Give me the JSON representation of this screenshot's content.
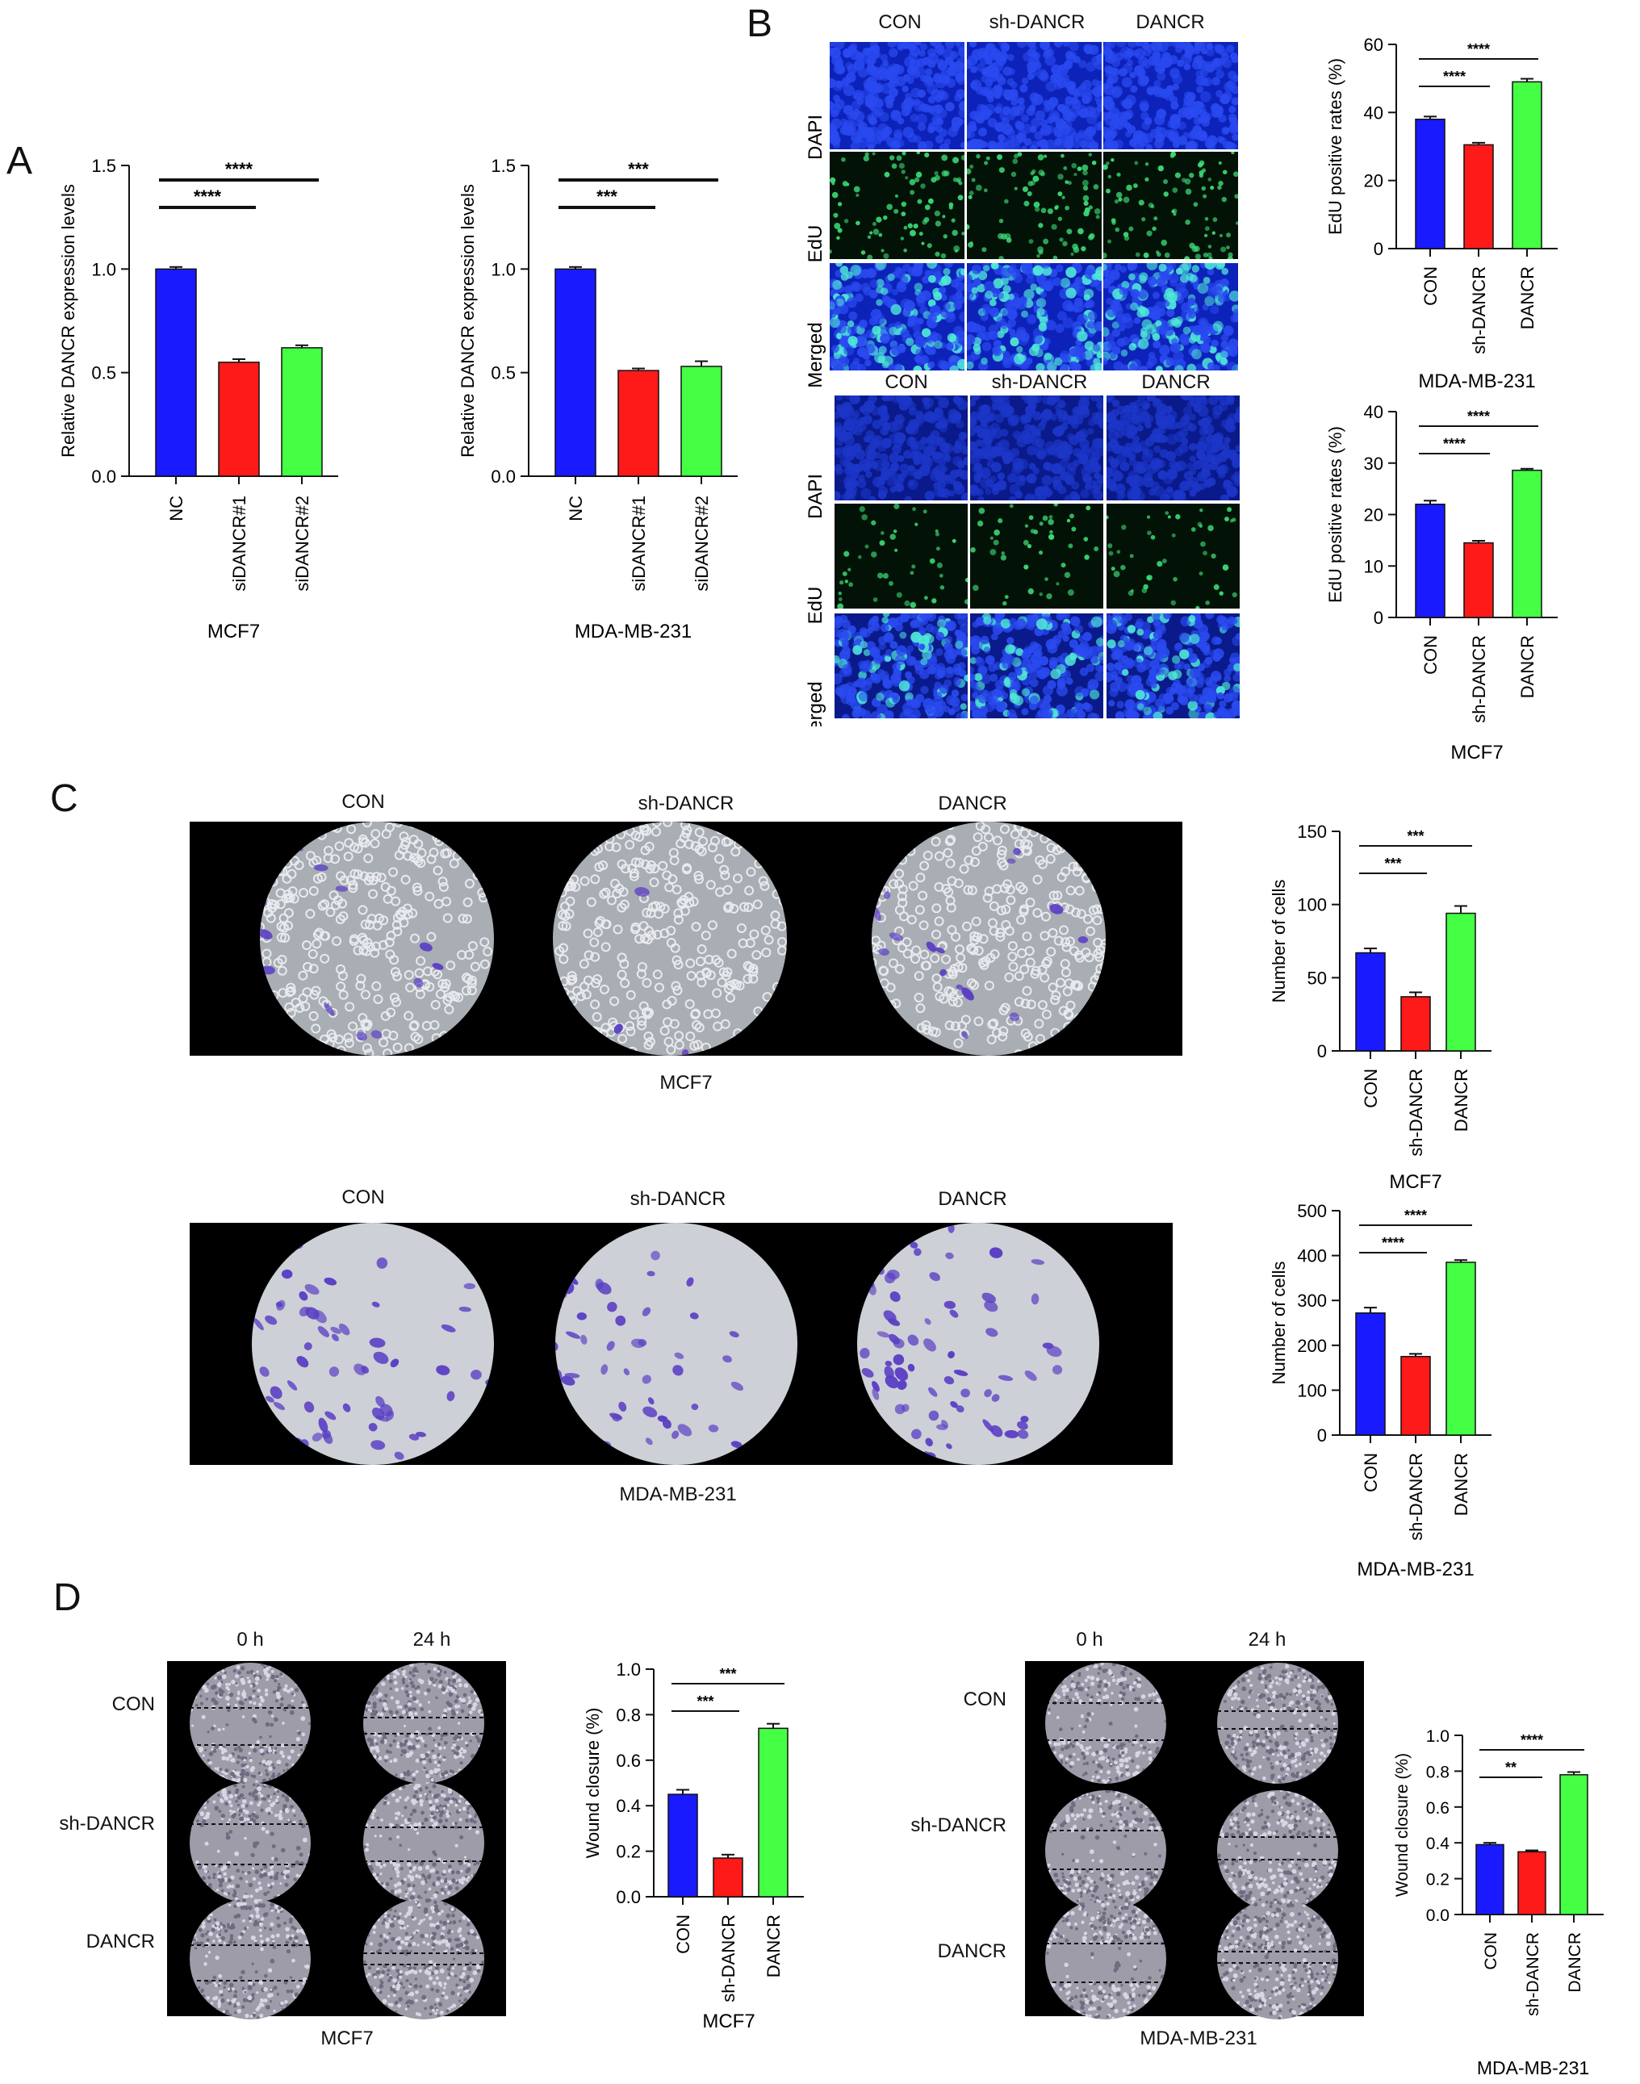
{
  "panels": {
    "a": "A",
    "b": "B",
    "c": "C",
    "d": "D"
  },
  "panel_b": {
    "columns": [
      "CON",
      "sh-DANCR",
      "DANCR"
    ],
    "rows": [
      "DAPI",
      "EdU",
      "Merged"
    ]
  },
  "panel_c": {
    "columns": [
      "CON",
      "sh-DANCR",
      "DANCR"
    ],
    "top_caption": "MCF7",
    "bottom_caption": "MDA-MB-231"
  },
  "panel_d": {
    "times": [
      "0 h",
      "24 h"
    ],
    "rows": [
      "CON",
      "sh-DANCR",
      "DANCR"
    ],
    "left_caption": "MCF7",
    "right_caption": "MDA-MB-231"
  },
  "colors": {
    "blue": "#1a1aff",
    "red": "#ff1a1a",
    "green": "#44ff44",
    "dapi": "#1d2fd6",
    "edu": "#3ee07a",
    "crystal": "#5b3fc4"
  },
  "chart_data": [
    {
      "id": "a1",
      "type": "bar",
      "categories": [
        "NC",
        "siDANCR#1",
        "siDANCR#2"
      ],
      "values": [
        1.0,
        0.55,
        0.62
      ],
      "errors": [
        0.01,
        0.015,
        0.012
      ],
      "ylabel": "Relative DANCR expression levels",
      "ylim": [
        0,
        1.5
      ],
      "yticks": [
        "0.0",
        "0.5",
        "1.0",
        "1.5"
      ],
      "caption": "MCF7",
      "sig": [
        {
          "from": 0,
          "to": 1,
          "label": "****"
        },
        {
          "from": 0,
          "to": 2,
          "label": "****"
        }
      ]
    },
    {
      "id": "a2",
      "type": "bar",
      "categories": [
        "NC",
        "siDANCR#1",
        "siDANCR#2"
      ],
      "values": [
        1.0,
        0.51,
        0.53
      ],
      "errors": [
        0.01,
        0.01,
        0.025
      ],
      "ylabel": "Relative DANCR expression levels",
      "ylim": [
        0,
        1.5
      ],
      "yticks": [
        "0.0",
        "0.5",
        "1.0",
        "1.5"
      ],
      "caption": "MDA-MB-231",
      "sig": [
        {
          "from": 0,
          "to": 1,
          "label": "***"
        },
        {
          "from": 0,
          "to": 2,
          "label": "***"
        }
      ]
    },
    {
      "id": "b1",
      "type": "bar",
      "categories": [
        "CON",
        "sh-DANCR",
        "DANCR"
      ],
      "values": [
        38,
        30.5,
        49
      ],
      "errors": [
        0.8,
        0.6,
        0.9
      ],
      "ylabel": "EdU positive rates (%)",
      "ylim": [
        0,
        60
      ],
      "yticks": [
        "0",
        "20",
        "40",
        "60"
      ],
      "caption": "MDA-MB-231",
      "sig": [
        {
          "from": 0,
          "to": 1,
          "label": "****"
        },
        {
          "from": 0,
          "to": 2,
          "label": "****"
        }
      ]
    },
    {
      "id": "b2",
      "type": "bar",
      "categories": [
        "CON",
        "sh-DANCR",
        "DANCR"
      ],
      "values": [
        22,
        14.5,
        28.6
      ],
      "errors": [
        0.7,
        0.4,
        0.3
      ],
      "ylabel": "EdU positive rates (%)",
      "ylim": [
        0,
        40
      ],
      "yticks": [
        "0",
        "10",
        "20",
        "30",
        "40"
      ],
      "caption": "MCF7",
      "sig": [
        {
          "from": 0,
          "to": 1,
          "label": "****"
        },
        {
          "from": 0,
          "to": 2,
          "label": "****"
        }
      ]
    },
    {
      "id": "c1",
      "type": "bar",
      "categories": [
        "CON",
        "sh-DANCR",
        "DANCR"
      ],
      "values": [
        67,
        37,
        94
      ],
      "errors": [
        3,
        3,
        5
      ],
      "ylabel": "Number of cells",
      "ylim": [
        0,
        150
      ],
      "yticks": [
        "0",
        "50",
        "100",
        "150"
      ],
      "caption": "MCF7",
      "sig": [
        {
          "from": 0,
          "to": 1,
          "label": "***"
        },
        {
          "from": 0,
          "to": 2,
          "label": "***"
        }
      ]
    },
    {
      "id": "c2",
      "type": "bar",
      "categories": [
        "CON",
        "sh-DANCR",
        "DANCR"
      ],
      "values": [
        272,
        175,
        385
      ],
      "errors": [
        12,
        6,
        5
      ],
      "ylabel": "Number of cells",
      "ylim": [
        0,
        500
      ],
      "yticks": [
        "0",
        "100",
        "200",
        "300",
        "400",
        "500"
      ],
      "caption": "MDA-MB-231",
      "sig": [
        {
          "from": 0,
          "to": 1,
          "label": "****"
        },
        {
          "from": 0,
          "to": 2,
          "label": "****"
        }
      ]
    },
    {
      "id": "d1",
      "type": "bar",
      "categories": [
        "CON",
        "sh-DANCR",
        "DANCR"
      ],
      "values": [
        0.45,
        0.17,
        0.74
      ],
      "errors": [
        0.02,
        0.015,
        0.02
      ],
      "ylabel": "Wound closure (%)",
      "ylim": [
        0,
        1.0
      ],
      "yticks": [
        "0.0",
        "0.2",
        "0.4",
        "0.6",
        "0.8",
        "1.0"
      ],
      "caption": "MCF7",
      "sig": [
        {
          "from": 0,
          "to": 1,
          "label": "***"
        },
        {
          "from": 0,
          "to": 2,
          "label": "***"
        }
      ]
    },
    {
      "id": "d2",
      "type": "bar",
      "categories": [
        "CON",
        "sh-DANCR",
        "DANCR"
      ],
      "values": [
        0.39,
        0.35,
        0.78
      ],
      "errors": [
        0.01,
        0.008,
        0.015
      ],
      "ylabel": "Wound closure (%)",
      "ylim": [
        0,
        1.0
      ],
      "yticks": [
        "0.0",
        "0.2",
        "0.4",
        "0.6",
        "0.8",
        "1.0"
      ],
      "caption": "MDA-MB-231",
      "sig": [
        {
          "from": 0,
          "to": 1,
          "label": "**"
        },
        {
          "from": 0,
          "to": 2,
          "label": "****"
        }
      ]
    }
  ]
}
